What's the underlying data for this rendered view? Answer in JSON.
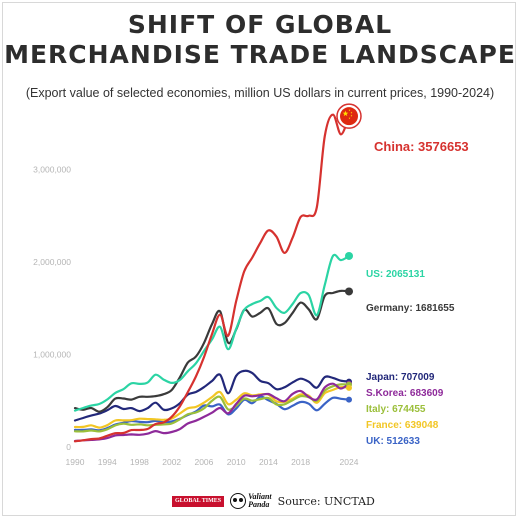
{
  "header": {
    "title_line1": "SHIFT OF GLOBAL",
    "title_line2": "MERCHANDISE TRADE LANDSCAPE",
    "subtitle": "(Export value of selected economies, million US dollars in current prices, 1990-2024)"
  },
  "footer": {
    "logo1_text": "GLOBAL TIMES",
    "logo2_text_line1": "Valiant",
    "logo2_text_line2": "Panda",
    "source": "Source: UNCTAD"
  },
  "chart_data": {
    "type": "line",
    "title": "SHIFT OF GLOBAL MERCHANDISE TRADE LANDSCAPE",
    "subtitle": "(Export value of selected economies, million US dollars in current prices, 1990-2024)",
    "xlabel": "",
    "ylabel": "",
    "xlim": [
      1990,
      2024
    ],
    "ylim": [
      0,
      3600000
    ],
    "x_ticks": [
      1990,
      1994,
      1998,
      2002,
      2006,
      2010,
      2014,
      2018,
      2024
    ],
    "x_tick_labels": [
      "1990",
      "1994",
      "1998",
      "2002",
      "2006",
      "2010",
      "2014",
      "2018",
      "2024"
    ],
    "y_ticks": [
      0,
      1000000,
      2000000,
      3000000
    ],
    "y_tick_labels": [
      "0",
      "1,000,000",
      "2,000,000",
      "3,000,000"
    ],
    "grid": false,
    "legend": "end-of-line labels",
    "x": [
      1990,
      1991,
      1992,
      1993,
      1994,
      1995,
      1996,
      1997,
      1998,
      1999,
      2000,
      2001,
      2002,
      2003,
      2004,
      2005,
      2006,
      2007,
      2008,
      2009,
      2010,
      2011,
      2012,
      2013,
      2014,
      2015,
      2016,
      2017,
      2018,
      2019,
      2020,
      2021,
      2022,
      2023,
      2024
    ],
    "series": [
      {
        "name": "China",
        "label": "China: 3576653",
        "color": "#d6322f",
        "end_value": 3576653,
        "values": [
          62000,
          72000,
          85000,
          92000,
          121000,
          149000,
          151000,
          183000,
          184000,
          195000,
          249000,
          266000,
          326000,
          438000,
          593000,
          762000,
          969000,
          1220000,
          1430000,
          1202000,
          1578000,
          1898000,
          2049000,
          2209000,
          2342000,
          2273000,
          2098000,
          2263000,
          2487000,
          2499000,
          2590000,
          3362000,
          3594000,
          3380000,
          3576653
        ]
      },
      {
        "name": "US",
        "label": "US: 2065131",
        "color": "#2bd4a4",
        "end_value": 2065131,
        "values": [
          394000,
          422000,
          448000,
          465000,
          513000,
          585000,
          625000,
          689000,
          682000,
          696000,
          782000,
          729000,
          693000,
          724000,
          818000,
          905000,
          1037000,
          1163000,
          1300000,
          1057000,
          1278000,
          1482000,
          1546000,
          1580000,
          1621000,
          1503000,
          1451000,
          1546000,
          1664000,
          1643000,
          1425000,
          1754000,
          2065000,
          2020000,
          2065131
        ]
      },
      {
        "name": "Germany",
        "label": "Germany: 1681655",
        "color": "#3a3a3a",
        "end_value": 1681655,
        "values": [
          421000,
          402000,
          422000,
          382000,
          429000,
          523000,
          524000,
          512000,
          543000,
          543000,
          550000,
          571000,
          616000,
          752000,
          912000,
          977000,
          1122000,
          1329000,
          1466000,
          1128000,
          1271000,
          1482000,
          1410000,
          1452000,
          1498000,
          1330000,
          1340000,
          1450000,
          1561000,
          1489000,
          1382000,
          1635000,
          1665000,
          1688000,
          1681655
        ]
      },
      {
        "name": "Japan",
        "label": "Japan: 707009",
        "color": "#22287a",
        "end_value": 707009,
        "values": [
          287000,
          314000,
          340000,
          361000,
          397000,
          443000,
          411000,
          421000,
          388000,
          419000,
          479000,
          403000,
          417000,
          472000,
          566000,
          595000,
          647000,
          714000,
          781000,
          581000,
          770000,
          823000,
          799000,
          715000,
          690000,
          625000,
          645000,
          698000,
          738000,
          706000,
          641000,
          756000,
          747000,
          717000,
          707009
        ]
      },
      {
        "name": "S.Korea",
        "label": "S.Korea: 683609",
        "color": "#8e2a9a",
        "end_value": 683609,
        "values": [
          65000,
          72000,
          77000,
          82000,
          96000,
          125000,
          130000,
          136000,
          132000,
          144000,
          172000,
          150000,
          162000,
          194000,
          254000,
          284000,
          325000,
          371000,
          422000,
          364000,
          466000,
          555000,
          548000,
          560000,
          573000,
          527000,
          495000,
          574000,
          605000,
          542000,
          513000,
          644000,
          684000,
          632000,
          683609
        ]
      },
      {
        "name": "Italy",
        "label": "Italy: 674455",
        "color": "#9bbf3a",
        "end_value": 674455,
        "values": [
          170000,
          169000,
          178000,
          169000,
          191000,
          234000,
          252000,
          240000,
          245000,
          235000,
          240000,
          244000,
          254000,
          299000,
          353000,
          373000,
          417000,
          500000,
          541000,
          406000,
          447000,
          523000,
          501000,
          518000,
          529000,
          459000,
          462000,
          506000,
          549000,
          538000,
          499000,
          610000,
          657000,
          677000,
          674455
        ]
      },
      {
        "name": "France",
        "label": "France: 639048",
        "color": "#f2c624",
        "end_value": 639048,
        "values": [
          216000,
          217000,
          235000,
          210000,
          236000,
          286000,
          288000,
          290000,
          306000,
          302000,
          300000,
          294000,
          307000,
          362000,
          418000,
          434000,
          479000,
          539000,
          594000,
          464000,
          511000,
          581000,
          558000,
          569000,
          566000,
          493000,
          489000,
          523000,
          568000,
          556000,
          478000,
          582000,
          617000,
          648000,
          639048
        ]
      },
      {
        "name": "UK",
        "label": "UK: 512633",
        "color": "#3a63c6",
        "end_value": 512633,
        "values": [
          185000,
          185000,
          190000,
          181000,
          204000,
          242000,
          262000,
          281000,
          271000,
          268000,
          282000,
          267000,
          276000,
          305000,
          346000,
          384000,
          448000,
          439000,
          458000,
          353000,
          416000,
          510000,
          474000,
          544000,
          505000,
          466000,
          409000,
          445000,
          487000,
          468000,
          397000,
          468000,
          532000,
          521000,
          512633
        ]
      }
    ]
  }
}
